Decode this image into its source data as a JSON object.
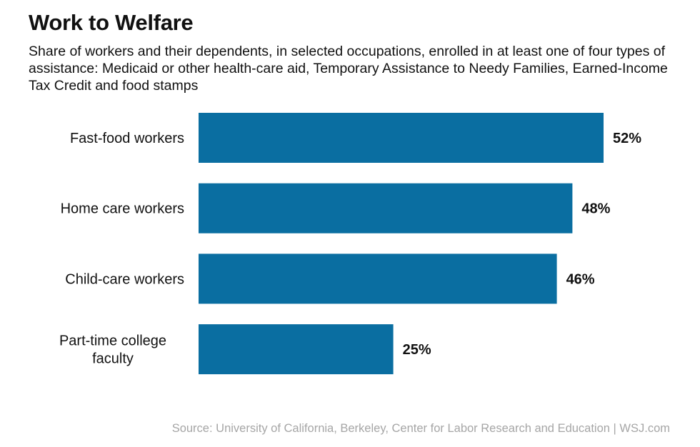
{
  "title": "Work to Welfare",
  "subtitle": "Share of workers and their dependents, in selected occupations, enrolled in at least one of four types of assistance: Medicaid or other health-care aid, Temporary Assistance to Needy Families, Earned-Income Tax Credit and food stamps",
  "source": "Source: University of California, Berkeley, Center for Labor Research and Education  |  WSJ.com",
  "colors": {
    "bar": "#0a6ea1"
  },
  "chart_data": {
    "type": "bar",
    "orientation": "horizontal",
    "title": "Work to Welfare",
    "categories": [
      [
        "Fast-food workers"
      ],
      [
        "Home care workers"
      ],
      [
        "Child-care workers"
      ],
      [
        "Part-time college",
        "faculty"
      ]
    ],
    "values": [
      52,
      48,
      46,
      25
    ],
    "value_labels": [
      "52%",
      "48%",
      "46%",
      "25%"
    ],
    "unit": "%",
    "xlim": [
      0,
      52
    ],
    "grid": false,
    "legend": "none"
  }
}
